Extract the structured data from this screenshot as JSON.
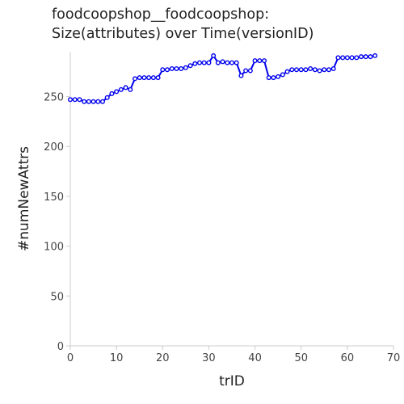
{
  "chart_data": {
    "type": "line",
    "title_line1": "foodcoopshop__foodcoopshop:",
    "title_line2": "Size(attributes) over Time(versionID)",
    "xlabel": "trID",
    "ylabel": "#numNewAttrs",
    "xlim": [
      0,
      70
    ],
    "ylim": [
      0,
      295
    ],
    "xticks": [
      0,
      10,
      20,
      30,
      40,
      50,
      60,
      70
    ],
    "yticks": [
      0,
      50,
      100,
      150,
      200,
      250
    ],
    "grid": false,
    "line_color": "#0000ee",
    "series": [
      {
        "x": [
          0,
          1,
          2,
          3,
          4,
          5,
          6,
          7,
          8,
          9,
          10,
          11,
          12,
          13,
          14,
          15,
          16,
          17,
          18,
          19,
          20,
          21,
          22,
          23,
          24,
          25,
          26,
          27,
          28,
          29,
          30,
          31,
          32,
          33,
          34,
          35,
          36,
          37,
          38,
          39,
          40,
          41,
          42,
          43,
          44,
          45,
          46,
          47,
          48,
          49,
          50,
          51,
          52,
          53,
          54,
          55,
          56,
          57,
          58,
          59,
          60,
          61,
          62,
          63,
          64,
          65,
          66
        ],
        "values": [
          247,
          247,
          247,
          245,
          245,
          245,
          245,
          245,
          249,
          253,
          255,
          257,
          259,
          257,
          268,
          269,
          269,
          269,
          269,
          269,
          277,
          277,
          278,
          278,
          278,
          279,
          281,
          283,
          284,
          284,
          284,
          291,
          284,
          285,
          284,
          284,
          284,
          271,
          276,
          276,
          286,
          286,
          286,
          269,
          269,
          270,
          272,
          275,
          277,
          277,
          277,
          277,
          278,
          277,
          276,
          277,
          277,
          278,
          289,
          289,
          289,
          289,
          289,
          290,
          290,
          290,
          291
        ]
      }
    ]
  }
}
